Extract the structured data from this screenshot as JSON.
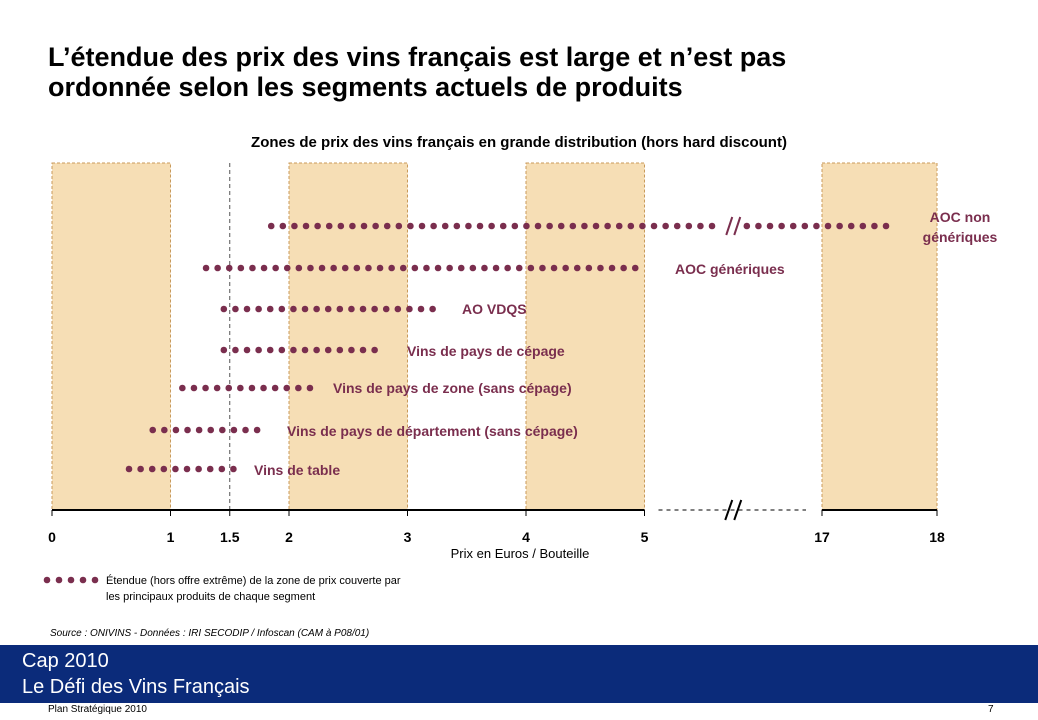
{
  "slide": {
    "title_line1": "L’étendue des prix des vins français est large et n’est pas",
    "title_line2": "ordonnée selon les segments actuels de produits",
    "source": "Source : ONIVINS - Données : IRI SECODIP / Infoscan (CAM à P08/01)",
    "legend_line1": "Étendue (hors offre extrême) de la zone de prix couverte par",
    "legend_line2": "les principaux produits de chaque segment",
    "footer_line1": "Cap 2010",
    "footer_line2": "Le Défi des Vins Français",
    "bottom_left": "Plan Stratégique 2010",
    "page_number": "7"
  },
  "colors": {
    "dot": "#7a2e4e",
    "label": "#7a2e4e",
    "band_fill": "#f6deb5",
    "band_border": "#c99a5a",
    "footer_bg": "#0b2b7a"
  },
  "chart_data": {
    "type": "range-dot",
    "title": "Zones de prix des vins français en grande distribution (hors hard discount)",
    "xlabel": "Prix en Euros / Bouteille",
    "x_ticks": [
      "0",
      "1",
      "1.5",
      "2",
      "3",
      "4",
      "5",
      "17",
      "18"
    ],
    "axis_break_between": [
      5,
      17
    ],
    "shaded_bands": [
      [
        0,
        1
      ],
      [
        2,
        3
      ],
      [
        4,
        5
      ],
      [
        17,
        18
      ]
    ],
    "dashed_reference_lines": [
      1.5
    ],
    "series": [
      {
        "name": "AOC non génériques",
        "label_line1": "AOC  non",
        "label_line2": "génériques",
        "x_min": 1.85,
        "x_max": 17.6
      },
      {
        "name": "AOC génériques",
        "label_line1": "AOC génériques",
        "x_min": 1.3,
        "x_max": 4.95
      },
      {
        "name": "AO VDQS",
        "label_line1": "AO VDQS",
        "x_min": 1.45,
        "x_max": 3.25
      },
      {
        "name": "Vins de pays de cépage",
        "label_line1": "Vins de pays de cépage",
        "x_min": 1.45,
        "x_max": 2.8
      },
      {
        "name": "Vins de pays de zone (sans cépage)",
        "label_line1": "Vins de pays de zone (sans cépage)",
        "x_min": 1.1,
        "x_max": 2.2
      },
      {
        "name": "Vins de pays de département (sans cépage)",
        "label_line1": "Vins de pays de département (sans cépage)",
        "x_min": 0.85,
        "x_max": 1.8
      },
      {
        "name": "Vins de table",
        "label_line1": "Vins de table",
        "x_min": 0.65,
        "x_max": 1.6
      }
    ]
  }
}
